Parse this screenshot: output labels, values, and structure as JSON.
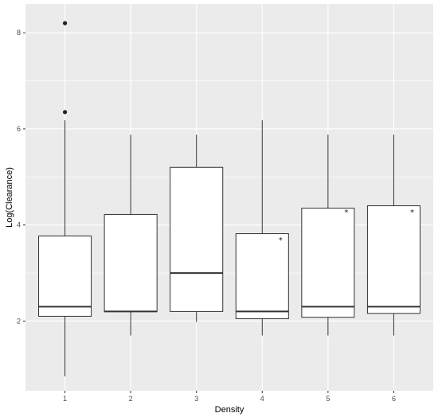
{
  "chart_data": {
    "type": "boxplot",
    "title": "",
    "xlabel": "Density",
    "ylabel": "Log(Clearance)",
    "categories": [
      "1",
      "2",
      "3",
      "4",
      "5",
      "6"
    ],
    "ylim": [
      0.55,
      8.6
    ],
    "yticks": [
      2,
      4,
      6,
      8
    ],
    "ytick_labels": [
      "2",
      "4",
      "6",
      "8"
    ],
    "grid": "on",
    "legend": "none",
    "boxes": [
      {
        "category": "1",
        "whisker_low": 0.85,
        "q1": 2.1,
        "median": 2.3,
        "q3": 3.77,
        "whisker_high": 6.18,
        "outliers": [
          6.35,
          8.2
        ],
        "mean": null
      },
      {
        "category": "2",
        "whisker_low": 1.7,
        "q1": 2.2,
        "median": 2.2,
        "q3": 4.22,
        "whisker_high": 5.88,
        "outliers": [],
        "mean": null
      },
      {
        "category": "3",
        "whisker_low": 1.98,
        "q1": 2.2,
        "median": 3.0,
        "q3": 5.2,
        "whisker_high": 5.88,
        "outliers": [],
        "mean": null
      },
      {
        "category": "4",
        "whisker_low": 1.7,
        "q1": 2.05,
        "median": 2.2,
        "q3": 3.82,
        "whisker_high": 6.18,
        "outliers": [],
        "mean": 3.7
      },
      {
        "category": "5",
        "whisker_low": 1.7,
        "q1": 2.08,
        "median": 2.3,
        "q3": 4.35,
        "whisker_high": 5.88,
        "outliers": [],
        "mean": 4.28
      },
      {
        "category": "6",
        "whisker_low": 1.7,
        "q1": 2.16,
        "median": 2.3,
        "q3": 4.4,
        "whisker_high": 5.88,
        "outliers": [],
        "mean": 4.28
      }
    ],
    "mean_marker": "*"
  },
  "colors": {
    "panel_background": "#ebebeb",
    "gridline": "#ffffff",
    "box_fill": "#ffffff",
    "box_line": "#333333",
    "tick_label": "#4d4d4d"
  }
}
